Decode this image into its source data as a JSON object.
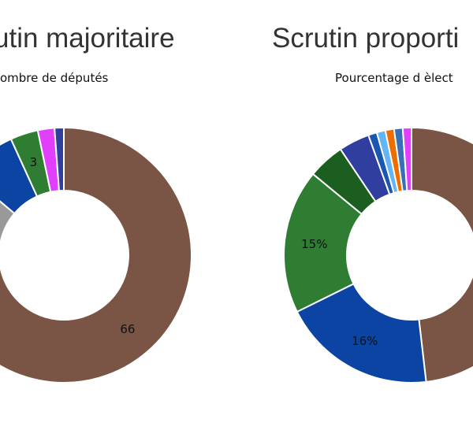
{
  "chart_data": [
    {
      "type": "pie",
      "style": "donut",
      "title": "utin majoritaire",
      "subtitle": "ombre de députés",
      "start_angle_deg": 90,
      "direction": "clockwise",
      "slices": [
        {
          "value": 66,
          "color": "#7a5444",
          "label": "66"
        },
        {
          "value": 7.5,
          "color": "#999999",
          "label": ""
        },
        {
          "value": 6,
          "color": "#0b44a3",
          "label": ""
        },
        {
          "value": 3,
          "color": "#2e7d32",
          "label": "3"
        },
        {
          "value": 1.8,
          "color": "#e040fb",
          "label": ""
        },
        {
          "value": 1,
          "color": "#303f9f",
          "label": ""
        }
      ]
    },
    {
      "type": "pie",
      "style": "donut",
      "title": "Scrutin proporti",
      "subtitle": "Pourcentage d èlect",
      "start_angle_deg": 90,
      "direction": "clockwise",
      "slices": [
        {
          "value": 39.5,
          "color": "#7a5444",
          "label": ""
        },
        {
          "value": 16,
          "color": "#0b44a3",
          "label": "16%"
        },
        {
          "value": 15,
          "color": "#2e7d32",
          "label": "15%"
        },
        {
          "value": 3.8,
          "color": "#1b5e20",
          "label": ""
        },
        {
          "value": 3.2,
          "color": "#303f9f",
          "label": ""
        },
        {
          "value": 0.9,
          "color": "#1a57b0",
          "label": ""
        },
        {
          "value": 0.9,
          "color": "#64b5f6",
          "label": ""
        },
        {
          "value": 0.9,
          "color": "#ef6c00",
          "label": ""
        },
        {
          "value": 0.9,
          "color": "#3a6fb5",
          "label": ""
        },
        {
          "value": 0.9,
          "color": "#e040fb",
          "label": ""
        }
      ]
    }
  ]
}
